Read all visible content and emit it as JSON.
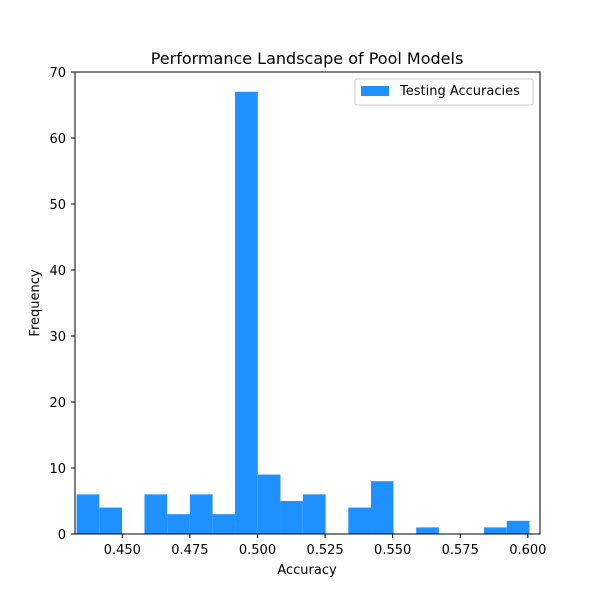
{
  "chart_data": {
    "type": "bar",
    "title": "Performance Landscape of Pool Models",
    "xlabel": "Accuracy",
    "ylabel": "Frequency",
    "xlim": [
      0.4325,
      0.6045
    ],
    "ylim": [
      0,
      70
    ],
    "x_ticks": [
      0.45,
      0.475,
      0.5,
      0.525,
      0.55,
      0.575,
      0.6
    ],
    "x_tick_labels": [
      "0.450",
      "0.475",
      "0.500",
      "0.525",
      "0.550",
      "0.575",
      "0.600"
    ],
    "y_ticks": [
      0,
      10,
      20,
      30,
      40,
      50,
      60,
      70
    ],
    "y_tick_labels": [
      "0",
      "10",
      "20",
      "30",
      "40",
      "50",
      "60",
      "70"
    ],
    "grid": false,
    "legend": {
      "position": "top-right",
      "entries": [
        "Testing Accuracies"
      ]
    },
    "series": [
      {
        "name": "Testing Accuracies",
        "color": "#1e90ff",
        "bin_edges": [
          0.4331,
          0.4415,
          0.4499,
          0.4582,
          0.4666,
          0.475,
          0.4834,
          0.4917,
          0.5001,
          0.5085,
          0.5168,
          0.5252,
          0.5336,
          0.542,
          0.5503,
          0.5587,
          0.5671,
          0.5755,
          0.5838,
          0.5922,
          0.6006
        ],
        "values": [
          6,
          4,
          0,
          6,
          3,
          6,
          3,
          67,
          9,
          5,
          6,
          0,
          4,
          8,
          0,
          1,
          0,
          0,
          1,
          2
        ]
      }
    ]
  }
}
